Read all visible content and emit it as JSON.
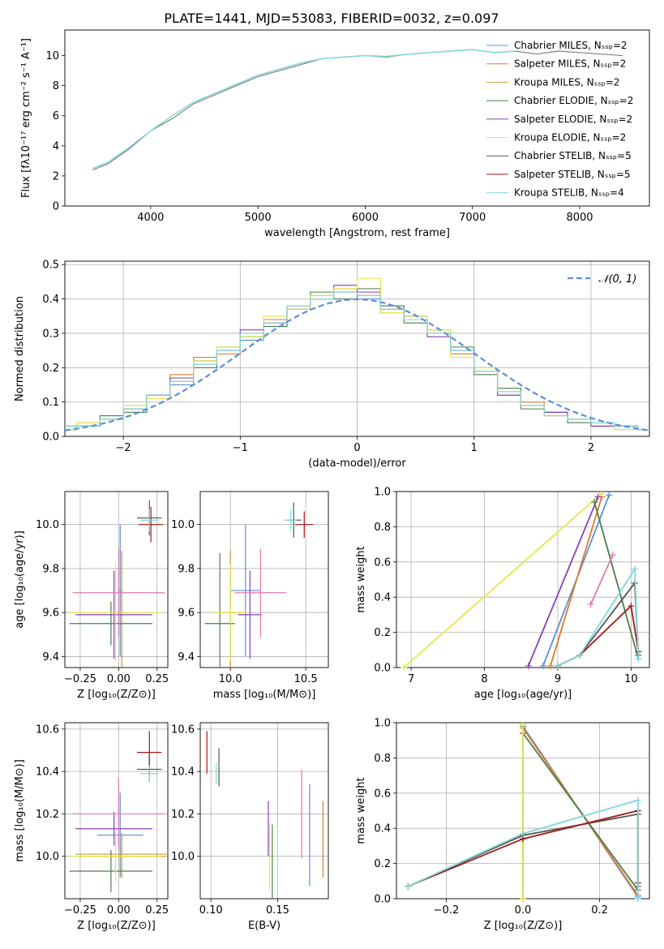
{
  "page_title": "PLATE=1441, MJD=53083, FIBERID=0032, z=0.097",
  "colors": {
    "chabrier_miles": "#5b8fd6",
    "salpeter_miles": "#e07a2a",
    "kroupa_miles": "#c8a64a",
    "chabrier_elodie": "#4d7d4d",
    "salpeter_elodie": "#8a3fb5",
    "kroupa_elodie": "#e6e84a",
    "chabrier_stelib": "#555555",
    "salpeter_stelib": "#a01818",
    "kroupa_stelib": "#7fd8d8",
    "data_grey": "#808080",
    "normal": "#5b8fd6",
    "pink": "#e07ab0"
  },
  "chart_data": [
    {
      "id": "spectrum",
      "type": "line",
      "title": "PLATE=1441, MJD=53083, FIBERID=0032, z=0.097",
      "xlabel": "wavelength [Angstrom, rest frame]",
      "ylabel": "Flux [fλ10⁻¹⁷ erg cm⁻² s⁻¹ A⁻¹]",
      "xlim": [
        3200,
        8650
      ],
      "ylim": [
        0,
        11.7
      ],
      "xticks": [
        4000,
        5000,
        6000,
        7000,
        8000
      ],
      "yticks": [
        0,
        2,
        4,
        6,
        8,
        10
      ],
      "legend_position": "right",
      "legend": [
        "Chabrier MILES, Nₛₛₚ=2",
        "Salpeter MILES, Nₛₛₚ=2",
        "Kroupa MILES, Nₛₛₚ=2",
        "Chabrier ELODIE, Nₛₛₚ=2",
        "Salpeter ELODIE, Nₛₛₚ=2",
        "Kroupa ELODIE, Nₛₛₚ=2",
        "Chabrier STELIB, Nₛₛₚ=5",
        "Salpeter STELIB, Nₛₛₚ=5",
        "Kroupa STELIB, Nₛₛₚ=4"
      ],
      "series": [
        {
          "name": "data",
          "x": [
            3460,
            3600,
            3800,
            4000,
            4200,
            4400,
            4600,
            4800,
            5000,
            5200,
            5400,
            5600,
            5800,
            6000,
            6200,
            6400,
            6600,
            6800,
            7000,
            7200,
            7400,
            7600,
            7800,
            8000,
            8200,
            8400
          ],
          "y": [
            2.4,
            2.8,
            3.8,
            5.0,
            5.8,
            6.8,
            7.4,
            8.0,
            8.6,
            9.0,
            9.4,
            9.8,
            9.9,
            10.0,
            9.9,
            10.1,
            10.2,
            10.3,
            10.4,
            10.2,
            10.3,
            10.1,
            10.3,
            10.2,
            10.1,
            10.0
          ]
        },
        {
          "name": "model",
          "x": [
            3460,
            3600,
            3800,
            4000,
            4200,
            4400,
            4600,
            4800,
            5000,
            5200,
            5400,
            5600,
            5800,
            6000,
            6200,
            6400,
            6600,
            6800,
            7000,
            7200,
            7400
          ],
          "y": [
            2.5,
            2.9,
            3.9,
            5.0,
            6.0,
            6.9,
            7.5,
            8.1,
            8.7,
            9.1,
            9.5,
            9.8,
            9.9,
            10.0,
            9.95,
            10.1,
            10.2,
            10.3,
            10.4,
            10.2,
            10.3
          ]
        }
      ]
    },
    {
      "id": "residuals",
      "type": "bar",
      "xlabel": "(data-model)/error",
      "ylabel": "Normed distribution",
      "xlim": [
        -2.5,
        2.5
      ],
      "ylim": [
        0,
        0.51
      ],
      "xticks": [
        -2,
        -1,
        0,
        1,
        2
      ],
      "yticks": [
        0.0,
        0.1,
        0.2,
        0.3,
        0.4,
        0.5
      ],
      "legend_position": "top-right",
      "legend": [
        "𝒩(0, 1)"
      ],
      "bin_edges": [
        -2.6,
        -2.4,
        -2.2,
        -2.0,
        -1.8,
        -1.6,
        -1.4,
        -1.2,
        -1.0,
        -0.8,
        -0.6,
        -0.4,
        -0.2,
        0.0,
        0.2,
        0.4,
        0.6,
        0.8,
        1.0,
        1.2,
        1.4,
        1.6,
        1.8,
        2.0,
        2.2,
        2.4,
        2.6
      ],
      "series": [
        {
          "name": "Chabrier MILES",
          "values": [
            0.02,
            0.03,
            0.05,
            0.08,
            0.11,
            0.15,
            0.21,
            0.25,
            0.28,
            0.33,
            0.37,
            0.4,
            0.42,
            0.4,
            0.38,
            0.35,
            0.3,
            0.25,
            0.19,
            0.13,
            0.09,
            0.07,
            0.05,
            0.04,
            0.03,
            0.02
          ]
        },
        {
          "name": "Salpeter MILES",
          "values": [
            0.02,
            0.04,
            0.05,
            0.09,
            0.12,
            0.18,
            0.23,
            0.24,
            0.3,
            0.34,
            0.38,
            0.41,
            0.43,
            0.41,
            0.37,
            0.34,
            0.31,
            0.24,
            0.2,
            0.12,
            0.1,
            0.06,
            0.05,
            0.03,
            0.03,
            0.02
          ]
        },
        {
          "name": "Chabrier ELODIE",
          "values": [
            0.03,
            0.03,
            0.06,
            0.07,
            0.12,
            0.16,
            0.2,
            0.26,
            0.29,
            0.32,
            0.38,
            0.42,
            0.4,
            0.43,
            0.38,
            0.33,
            0.3,
            0.26,
            0.18,
            0.14,
            0.08,
            0.07,
            0.04,
            0.04,
            0.02,
            0.02
          ]
        },
        {
          "name": "Salpeter ELODIE",
          "values": [
            0.02,
            0.03,
            0.05,
            0.08,
            0.12,
            0.17,
            0.22,
            0.25,
            0.31,
            0.33,
            0.37,
            0.4,
            0.44,
            0.42,
            0.36,
            0.35,
            0.29,
            0.25,
            0.19,
            0.12,
            0.09,
            0.07,
            0.05,
            0.03,
            0.03,
            0.02
          ]
        },
        {
          "name": "Kroupa ELODIE",
          "values": [
            0.02,
            0.04,
            0.05,
            0.09,
            0.11,
            0.16,
            0.22,
            0.26,
            0.29,
            0.35,
            0.37,
            0.41,
            0.43,
            0.46,
            0.36,
            0.35,
            0.31,
            0.23,
            0.2,
            0.13,
            0.09,
            0.06,
            0.05,
            0.04,
            0.02,
            0.02
          ]
        },
        {
          "name": "Kroupa STELIB",
          "values": [
            0.03,
            0.03,
            0.05,
            0.08,
            0.12,
            0.16,
            0.21,
            0.25,
            0.3,
            0.33,
            0.38,
            0.4,
            0.42,
            0.41,
            0.37,
            0.34,
            0.3,
            0.25,
            0.19,
            0.13,
            0.09,
            0.06,
            0.05,
            0.04,
            0.03,
            0.02
          ]
        }
      ],
      "normal": {
        "name": "𝒩(0, 1)",
        "mean": 0,
        "sigma": 1
      }
    },
    {
      "id": "age_vs_Z",
      "type": "scatter",
      "xlabel": "Z [log₁₀(Z/Z⊙)]",
      "ylabel": "age  [log₁₀(age/yr)]",
      "xlim": [
        -0.35,
        0.32
      ],
      "ylim": [
        9.35,
        10.15
      ],
      "xticks": [
        -0.25,
        0.0,
        0.25
      ],
      "yticks": [
        9.4,
        9.6,
        9.8,
        10.0
      ],
      "points": [
        {
          "name": "Chabrier MILES",
          "x": 0.01,
          "y": 9.7,
          "xerr": 0.01,
          "yerr": 0.3
        },
        {
          "name": "Salpeter MILES",
          "x": 0.02,
          "y": 9.6,
          "xerr": 0.02,
          "yerr": 0.28
        },
        {
          "name": "Kroupa MILES",
          "x": 0.02,
          "y": 9.6,
          "xerr": 0.02,
          "yerr": 0.28
        },
        {
          "name": "Chabrier ELODIE",
          "x": -0.05,
          "y": 9.55,
          "xerr": 0.27,
          "yerr": 0.1
        },
        {
          "name": "Salpeter ELODIE",
          "x": -0.03,
          "y": 9.59,
          "xerr": 0.25,
          "yerr": 0.2
        },
        {
          "name": "Kroupa ELODIE",
          "x": -0.02,
          "y": 9.6,
          "xerr": 0.3,
          "yerr": 0.22
        },
        {
          "name": "Chabrier STELIB",
          "x": 0.2,
          "y": 10.03,
          "xerr": 0.08,
          "yerr": 0.08
        },
        {
          "name": "Salpeter STELIB",
          "x": 0.21,
          "y": 10.0,
          "xerr": 0.08,
          "yerr": 0.08
        },
        {
          "name": "Kroupa STELIB",
          "x": 0.2,
          "y": 10.02,
          "xerr": 0.06,
          "yerr": 0.05
        },
        {
          "name": "pink",
          "x": 0.0,
          "y": 9.69,
          "xerr": 0.3,
          "yerr": 0.2
        }
      ]
    },
    {
      "id": "age_vs_mass",
      "type": "scatter",
      "xlabel": "mass [log₁₀(M/M⊙)]",
      "xlim": [
        9.8,
        10.65
      ],
      "ylim": [
        9.35,
        10.15
      ],
      "xticks": [
        10.0,
        10.5
      ],
      "yticks": [
        9.4,
        9.6,
        9.8,
        10.0
      ],
      "points": [
        {
          "name": "Chabrier MILES",
          "x": 10.1,
          "y": 9.7,
          "xerr": 0.1,
          "yerr": 0.3
        },
        {
          "name": "Salpeter MILES",
          "x": 10.0,
          "y": 9.6,
          "xerr": 0.08,
          "yerr": 0.28
        },
        {
          "name": "Kroupa MILES",
          "x": 10.0,
          "y": 9.6,
          "xerr": 0.08,
          "yerr": 0.28
        },
        {
          "name": "Chabrier ELODIE",
          "x": 9.93,
          "y": 9.55,
          "xerr": 0.1,
          "yerr": 0.32
        },
        {
          "name": "Salpeter ELODIE",
          "x": 10.13,
          "y": 9.59,
          "xerr": 0.08,
          "yerr": 0.2
        },
        {
          "name": "Kroupa ELODIE",
          "x": 10.0,
          "y": 9.6,
          "xerr": 0.12,
          "yerr": 0.22
        },
        {
          "name": "Chabrier STELIB",
          "x": 10.42,
          "y": 10.02,
          "xerr": 0.05,
          "yerr": 0.08
        },
        {
          "name": "Salpeter STELIB",
          "x": 10.49,
          "y": 10.0,
          "xerr": 0.06,
          "yerr": 0.06
        },
        {
          "name": "Kroupa STELIB",
          "x": 10.4,
          "y": 10.02,
          "xerr": 0.04,
          "yerr": 0.05
        },
        {
          "name": "pink",
          "x": 10.2,
          "y": 9.69,
          "xerr": 0.17,
          "yerr": 0.2
        }
      ]
    },
    {
      "id": "weight_vs_age",
      "type": "line",
      "xlabel": "age  [log₁₀(age/yr)]",
      "ylabel": "mass weight",
      "xlim": [
        6.8,
        10.25
      ],
      "ylim": [
        0,
        1.0
      ],
      "xticks": [
        7,
        8,
        9,
        10
      ],
      "yticks": [
        0.0,
        0.2,
        0.4,
        0.6,
        0.8,
        1.0
      ],
      "series": [
        {
          "name": "Chabrier MILES",
          "x": [
            8.8,
            9.7
          ],
          "y": [
            0.01,
            0.98
          ]
        },
        {
          "name": "Salpeter MILES",
          "x": [
            8.9,
            9.6
          ],
          "y": [
            0.01,
            0.97
          ]
        },
        {
          "name": "Kroupa ELODIE",
          "x": [
            6.9,
            9.6
          ],
          "y": [
            0.0,
            0.99
          ]
        },
        {
          "name": "Salpeter ELODIE",
          "x": [
            8.6,
            9.55
          ],
          "y": [
            0.01,
            0.97
          ]
        },
        {
          "name": "Chabrier ELODIE",
          "x": [
            9.5,
            10.1
          ],
          "y": [
            0.94,
            0.05
          ]
        },
        {
          "name": "Chabrier STELIB",
          "x": [
            9.0,
            9.3,
            10.05,
            10.1
          ],
          "y": [
            0.01,
            0.07,
            0.48,
            0.07
          ]
        },
        {
          "name": "Salpeter STELIB",
          "x": [
            9.0,
            9.3,
            10.0,
            10.1
          ],
          "y": [
            0.01,
            0.07,
            0.35,
            0.09
          ]
        },
        {
          "name": "Kroupa STELIB",
          "x": [
            9.0,
            9.3,
            10.05,
            10.1
          ],
          "y": [
            0.01,
            0.07,
            0.56,
            0.05
          ]
        },
        {
          "name": "pink",
          "x": [
            9.45,
            9.75
          ],
          "y": [
            0.36,
            0.64
          ]
        }
      ]
    },
    {
      "id": "mass_vs_Z",
      "type": "scatter",
      "xlabel": "Z [log₁₀(Z/Z⊙)]",
      "ylabel": "mass [log₁₀(M/M⊙)]",
      "xlim": [
        -0.35,
        0.32
      ],
      "ylim": [
        9.8,
        10.63
      ],
      "xticks": [
        -0.25,
        0.0,
        0.25
      ],
      "yticks": [
        10.0,
        10.2,
        10.4,
        10.6
      ],
      "points": [
        {
          "name": "Chabrier MILES",
          "x": 0.01,
          "y": 10.1,
          "xerr": 0.15,
          "yerr": 0.2
        },
        {
          "name": "Salpeter MILES",
          "x": 0.02,
          "y": 10.0,
          "xerr": 0.28,
          "yerr": 0.1
        },
        {
          "name": "Kroupa MILES",
          "x": 0.02,
          "y": 10.01,
          "xerr": 0.3,
          "yerr": 0.1
        },
        {
          "name": "Chabrier ELODIE",
          "x": -0.05,
          "y": 9.93,
          "xerr": 0.27,
          "yerr": 0.1
        },
        {
          "name": "Salpeter ELODIE",
          "x": -0.03,
          "y": 10.13,
          "xerr": 0.25,
          "yerr": 0.08
        },
        {
          "name": "Kroupa ELODIE",
          "x": -0.02,
          "y": 10.0,
          "xerr": 0.3,
          "yerr": 0.12
        },
        {
          "name": "Chabrier STELIB",
          "x": 0.2,
          "y": 10.41,
          "xerr": 0.08,
          "yerr": 0.06
        },
        {
          "name": "Salpeter STELIB",
          "x": 0.2,
          "y": 10.49,
          "xerr": 0.08,
          "yerr": 0.1
        },
        {
          "name": "Kroupa STELIB",
          "x": 0.2,
          "y": 10.39,
          "xerr": 0.06,
          "yerr": 0.04
        },
        {
          "name": "pink",
          "x": 0.0,
          "y": 10.2,
          "xerr": 0.3,
          "yerr": 0.17
        }
      ]
    },
    {
      "id": "mass_vs_ebv",
      "type": "scatter",
      "xlabel": "E(B-V)",
      "xlim": [
        0.092,
        0.188
      ],
      "ylim": [
        9.8,
        10.63
      ],
      "xticks": [
        0.1,
        0.15
      ],
      "yticks": [
        10.0,
        10.2,
        10.4,
        10.6
      ],
      "points": [
        {
          "name": "Salpeter STELIB",
          "x": 0.097,
          "y": 10.49,
          "yerr": 0.1
        },
        {
          "name": "Kroupa STELIB",
          "x": 0.104,
          "y": 10.39,
          "yerr": 0.05
        },
        {
          "name": "Chabrier STELIB",
          "x": 0.106,
          "y": 10.42,
          "yerr": 0.09
        },
        {
          "name": "Salpeter ELODIE",
          "x": 0.143,
          "y": 10.13,
          "yerr": 0.13
        },
        {
          "name": "Kroupa ELODIE",
          "x": 0.144,
          "y": 10.0,
          "yerr": 0.16
        },
        {
          "name": "Chabrier ELODIE",
          "x": 0.146,
          "y": 9.95,
          "yerr": 0.2
        },
        {
          "name": "pink",
          "x": 0.168,
          "y": 10.2,
          "yerr": 0.21
        },
        {
          "name": "Chabrier MILES",
          "x": 0.174,
          "y": 10.1,
          "yerr": 0.24
        },
        {
          "name": "Salpeter MILES",
          "x": 0.184,
          "y": 10.08,
          "yerr": 0.18
        }
      ]
    },
    {
      "id": "weight_vs_Z",
      "type": "line",
      "xlabel": "Z [log₁₀(Z/Z⊙)]",
      "ylabel": "mass weight",
      "xlim": [
        -0.33,
        0.33
      ],
      "ylim": [
        0,
        1.0
      ],
      "xticks": [
        -0.2,
        0.0,
        0.2
      ],
      "yticks": [
        0.0,
        0.2,
        0.4,
        0.6,
        0.8,
        1.0
      ],
      "series": [
        {
          "name": "Chabrier MILES",
          "x": [
            0.0,
            0.0,
            0.3
          ],
          "y": [
            0.0,
            0.98,
            0.01
          ]
        },
        {
          "name": "Salpeter MILES",
          "x": [
            0.0,
            0.0,
            0.3
          ],
          "y": [
            0.0,
            0.97,
            0.02
          ]
        },
        {
          "name": "Chabrier ELODIE",
          "x": [
            0.0,
            0.0,
            0.3
          ],
          "y": [
            0.0,
            0.94,
            0.05
          ]
        },
        {
          "name": "Kroupa ELODIE",
          "x": [
            0.0,
            0.0,
            0.0
          ],
          "y": [
            0.0,
            0.99,
            0.0
          ]
        },
        {
          "name": "Chabrier STELIB",
          "x": [
            -0.3,
            0.0,
            0.3,
            0.3
          ],
          "y": [
            0.07,
            0.36,
            0.48,
            0.07
          ]
        },
        {
          "name": "Salpeter STELIB",
          "x": [
            -0.3,
            0.0,
            0.3,
            0.3
          ],
          "y": [
            0.07,
            0.34,
            0.5,
            0.09
          ]
        },
        {
          "name": "Kroupa STELIB",
          "x": [
            -0.3,
            0.0,
            0.3,
            0.3
          ],
          "y": [
            0.07,
            0.37,
            0.56,
            0.0
          ]
        }
      ]
    }
  ]
}
